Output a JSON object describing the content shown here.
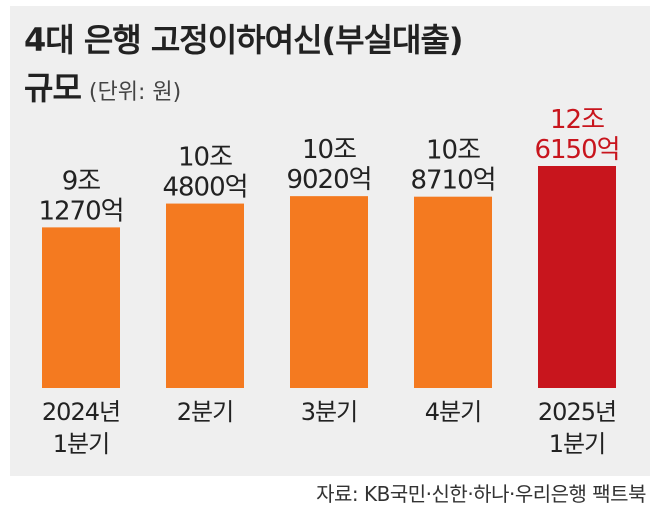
{
  "title": "4대 은행 고정이하여신(부실대출)",
  "title_line2": "규모",
  "unit_label": "(단위: 원)",
  "source": "자료: KB국민·신한·하나·우리은행 팩트북",
  "colors": {
    "bar": "#f47a20",
    "bar_highlight": "#c8151d",
    "label": "#222222",
    "label_highlight": "#c8151d",
    "background": "#efefef"
  },
  "chart_data": {
    "type": "bar",
    "title": "4대 은행 고정이하여신(부실대출) 규모",
    "ylabel": "",
    "xlabel": "",
    "unit": "원",
    "grid": false,
    "ylim": [
      0,
      12.615
    ],
    "categories": [
      [
        "2024년",
        "1분기"
      ],
      [
        "2분기"
      ],
      [
        "3분기"
      ],
      [
        "4분기"
      ],
      [
        "2025년",
        "1분기"
      ]
    ],
    "values": [
      9.127,
      10.48,
      10.902,
      10.871,
      12.615
    ],
    "value_units": "조 원",
    "data_labels": [
      [
        "9조",
        "1270억"
      ],
      [
        "10조",
        "4800억"
      ],
      [
        "10조",
        "9020억"
      ],
      [
        "10조",
        "8710억"
      ],
      [
        "12조",
        "6150억"
      ]
    ],
    "highlight_index": 4
  }
}
